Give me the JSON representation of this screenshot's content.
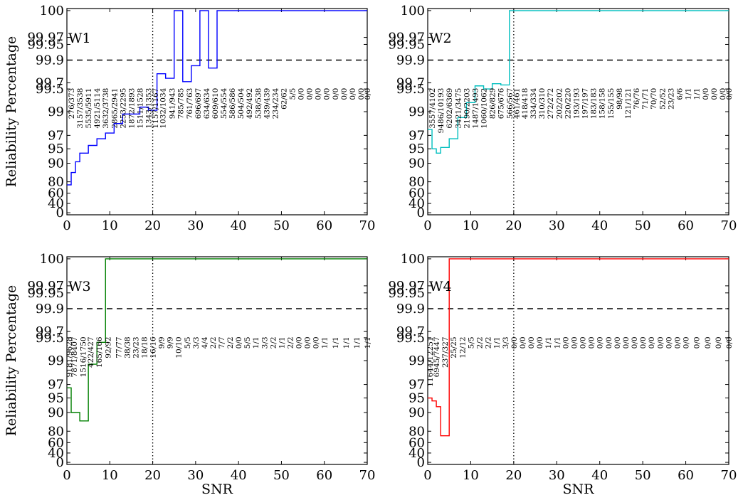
{
  "figure": {
    "ylabel": "Reliability Percentage",
    "xlabel": "SNR"
  },
  "chart_data": [
    {
      "type": "line",
      "title": "W1",
      "color": "#0000ff",
      "xlabel": "",
      "ylabel": "Reliability Percentage",
      "xlim": [
        0,
        70
      ],
      "xticks": [
        0,
        10,
        20,
        30,
        40,
        50,
        60,
        70
      ],
      "yticks": [
        "0",
        "40",
        "60",
        "80",
        "90",
        "95",
        "97",
        "99",
        "99.5",
        "99.7",
        "99.9",
        "99.95",
        "99.97",
        "100"
      ],
      "hline": 99.9,
      "vline": 20,
      "steps": [
        {
          "x": 0,
          "y": 74.5
        },
        {
          "x": 1,
          "y": 85
        },
        {
          "x": 2,
          "y": 90.5
        },
        {
          "x": 3,
          "y": 93.5
        },
        {
          "x": 5,
          "y": 95.5
        },
        {
          "x": 7,
          "y": 96.5
        },
        {
          "x": 9,
          "y": 97.2
        },
        {
          "x": 11,
          "y": 98.0
        },
        {
          "x": 13,
          "y": 98.8
        },
        {
          "x": 17,
          "y": 99.1
        },
        {
          "x": 19,
          "y": 99.03
        },
        {
          "x": 21,
          "y": 99.78
        },
        {
          "x": 23,
          "y": 99.74
        },
        {
          "x": 25,
          "y": 100
        },
        {
          "x": 27,
          "y": 99.71
        },
        {
          "x": 29,
          "y": 99.85
        },
        {
          "x": 31,
          "y": 100
        },
        {
          "x": 33,
          "y": 99.83
        },
        {
          "x": 35,
          "y": 100
        },
        {
          "x": 70,
          "y": 100
        }
      ],
      "counts": [
        {
          "x": 1,
          "text": "276/373"
        },
        {
          "x": 3,
          "text": "3157/3538"
        },
        {
          "x": 5,
          "text": "5535/5911"
        },
        {
          "x": 7,
          "text": "4921/5114"
        },
        {
          "x": 9,
          "text": "3632/3738"
        },
        {
          "x": 11,
          "text": "2865/2941"
        },
        {
          "x": 13,
          "text": "2253/2295"
        },
        {
          "x": 15,
          "text": "1872/1893"
        },
        {
          "x": 17,
          "text": "1511/1528"
        },
        {
          "x": 19,
          "text": "1343/1353"
        },
        {
          "x": 20.6,
          "text": "1157/1167"
        },
        {
          "x": 22.3,
          "text": "1032/1034"
        },
        {
          "x": 24.5,
          "text": "941/943"
        },
        {
          "x": 26.5,
          "text": "785/785"
        },
        {
          "x": 28.5,
          "text": "761/763"
        },
        {
          "x": 30.5,
          "text": "696/697"
        },
        {
          "x": 32.5,
          "text": "634/634"
        },
        {
          "x": 34.5,
          "text": "609/610"
        },
        {
          "x": 36.5,
          "text": "554/554"
        },
        {
          "x": 38.5,
          "text": "586/586"
        },
        {
          "x": 40.5,
          "text": "504/504"
        },
        {
          "x": 42.5,
          "text": "492/492"
        },
        {
          "x": 44.5,
          "text": "538/538"
        },
        {
          "x": 46.5,
          "text": "439/439"
        },
        {
          "x": 48.5,
          "text": "234/234"
        },
        {
          "x": 50.5,
          "text": "62/62"
        },
        {
          "x": 52.5,
          "text": "5/5"
        },
        {
          "x": 54.5,
          "text": "0/0"
        },
        {
          "x": 56.5,
          "text": "0/0"
        },
        {
          "x": 58.5,
          "text": "0/0"
        },
        {
          "x": 60.5,
          "text": "0/0"
        },
        {
          "x": 62.5,
          "text": "0/0"
        },
        {
          "x": 64.5,
          "text": "0/0"
        },
        {
          "x": 66.5,
          "text": "0/0"
        },
        {
          "x": 68.5,
          "text": "0/0"
        },
        {
          "x": 70,
          "text": "0/0"
        }
      ]
    },
    {
      "type": "line",
      "title": "W2",
      "color": "#00bfbf",
      "xlabel": "",
      "ylabel": "",
      "xlim": [
        0,
        70
      ],
      "xticks": [
        0,
        10,
        20,
        30,
        40,
        50,
        60,
        70
      ],
      "yticks": [
        "0",
        "40",
        "60",
        "80",
        "90",
        "95",
        "97",
        "99",
        "99.5",
        "99.7",
        "99.9",
        "99.95",
        "99.97",
        "100"
      ],
      "hline": 99.9,
      "vline": 20,
      "steps": [
        {
          "x": 0,
          "y": 97.5
        },
        {
          "x": 1,
          "y": 95
        },
        {
          "x": 2,
          "y": 93.5
        },
        {
          "x": 3,
          "y": 95.2
        },
        {
          "x": 5,
          "y": 96.5
        },
        {
          "x": 7,
          "y": 98.5
        },
        {
          "x": 9,
          "y": 99.2
        },
        {
          "x": 11,
          "y": 99.6
        },
        {
          "x": 13,
          "y": 99.5
        },
        {
          "x": 15,
          "y": 99.67
        },
        {
          "x": 17,
          "y": 99.63
        },
        {
          "x": 19,
          "y": 100
        },
        {
          "x": 70,
          "y": 100
        }
      ],
      "counts": [
        {
          "x": 1,
          "text": "3557/4102"
        },
        {
          "x": 3,
          "text": "9486/10193"
        },
        {
          "x": 5,
          "text": "6202/6369"
        },
        {
          "x": 7,
          "text": "3421/3475"
        },
        {
          "x": 9,
          "text": "2190/2203"
        },
        {
          "x": 11,
          "text": "1487/1493"
        },
        {
          "x": 13,
          "text": "1060/1062"
        },
        {
          "x": 15,
          "text": "826/829"
        },
        {
          "x": 17,
          "text": "675/676"
        },
        {
          "x": 19,
          "text": "566/567"
        },
        {
          "x": 20.6,
          "text": "461/461"
        },
        {
          "x": 22.5,
          "text": "418/418"
        },
        {
          "x": 24.5,
          "text": "334/334"
        },
        {
          "x": 26.5,
          "text": "310/310"
        },
        {
          "x": 28.5,
          "text": "272/272"
        },
        {
          "x": 30.5,
          "text": "202/202"
        },
        {
          "x": 32.5,
          "text": "220/220"
        },
        {
          "x": 34.5,
          "text": "193/193"
        },
        {
          "x": 36.5,
          "text": "197/197"
        },
        {
          "x": 38.5,
          "text": "183/183"
        },
        {
          "x": 40.5,
          "text": "158/158"
        },
        {
          "x": 42.5,
          "text": "155/155"
        },
        {
          "x": 44.5,
          "text": "98/98"
        },
        {
          "x": 46.5,
          "text": "121/121"
        },
        {
          "x": 48.5,
          "text": "76/76"
        },
        {
          "x": 50.5,
          "text": "71/71"
        },
        {
          "x": 52.5,
          "text": "70/70"
        },
        {
          "x": 54.5,
          "text": "52/52"
        },
        {
          "x": 56.5,
          "text": "23/23"
        },
        {
          "x": 58.5,
          "text": "6/6"
        },
        {
          "x": 60.5,
          "text": "1/1"
        },
        {
          "x": 62.5,
          "text": "1/1"
        },
        {
          "x": 64.5,
          "text": "0/0"
        },
        {
          "x": 66.5,
          "text": "0/0"
        },
        {
          "x": 68.5,
          "text": "0/0"
        },
        {
          "x": 70,
          "text": "0/0"
        }
      ]
    },
    {
      "type": "line",
      "title": "W3",
      "color": "#008000",
      "xlabel": "SNR",
      "ylabel": "Reliability Percentage",
      "xlim": [
        0,
        70
      ],
      "xticks": [
        0,
        10,
        20,
        30,
        40,
        50,
        60,
        70
      ],
      "yticks": [
        "0",
        "40",
        "60",
        "80",
        "90",
        "95",
        "97",
        "99",
        "99.5",
        "99.7",
        "99.9",
        "99.95",
        "99.97",
        "100"
      ],
      "hline": 99.9,
      "vline": 20,
      "steps": [
        {
          "x": 0,
          "y": 96.5
        },
        {
          "x": 1,
          "y": 90
        },
        {
          "x": 3,
          "y": 85.5
        },
        {
          "x": 5,
          "y": 98.7
        },
        {
          "x": 7,
          "y": 99.4
        },
        {
          "x": 9,
          "y": 100
        },
        {
          "x": 70,
          "y": 100
        }
      ],
      "counts": [
        {
          "x": 0.5,
          "text": "9181/9628"
        },
        {
          "x": 1.7,
          "text": "7871/8407"
        },
        {
          "x": 3.7,
          "text": "1516/1750"
        },
        {
          "x": 5.5,
          "text": "422/427"
        },
        {
          "x": 7.5,
          "text": "165/166"
        },
        {
          "x": 9.5,
          "text": "92/92"
        },
        {
          "x": 12,
          "text": "77/77"
        },
        {
          "x": 14,
          "text": "38/38"
        },
        {
          "x": 16,
          "text": "23/23"
        },
        {
          "x": 18,
          "text": "18/18"
        },
        {
          "x": 20,
          "text": "16/16"
        },
        {
          "x": 22,
          "text": "9/9"
        },
        {
          "x": 24,
          "text": "9/9"
        },
        {
          "x": 26,
          "text": "10/10"
        },
        {
          "x": 28,
          "text": "5/5"
        },
        {
          "x": 30,
          "text": "3/3"
        },
        {
          "x": 32,
          "text": "4/4"
        },
        {
          "x": 34,
          "text": "2/2"
        },
        {
          "x": 36,
          "text": "7/7"
        },
        {
          "x": 38,
          "text": "2/2"
        },
        {
          "x": 40,
          "text": "0/0"
        },
        {
          "x": 42,
          "text": "5/5"
        },
        {
          "x": 44,
          "text": "1/1"
        },
        {
          "x": 46,
          "text": "3/3"
        },
        {
          "x": 48,
          "text": "2/2"
        },
        {
          "x": 50,
          "text": "1/1"
        },
        {
          "x": 52,
          "text": "2/2"
        },
        {
          "x": 54,
          "text": "0/0"
        },
        {
          "x": 56,
          "text": "0/0"
        },
        {
          "x": 58,
          "text": "0/0"
        },
        {
          "x": 60,
          "text": "1/1"
        },
        {
          "x": 62.5,
          "text": "1/1"
        },
        {
          "x": 65,
          "text": "1/1"
        },
        {
          "x": 67.5,
          "text": "1/1"
        },
        {
          "x": 70,
          "text": "1/1"
        }
      ]
    },
    {
      "type": "line",
      "title": "W4",
      "color": "#ff0000",
      "xlabel": "SNR",
      "ylabel": "",
      "xlim": [
        0,
        70
      ],
      "xticks": [
        0,
        10,
        20,
        30,
        40,
        50,
        60,
        70
      ],
      "yticks": [
        "0",
        "40",
        "60",
        "80",
        "90",
        "95",
        "97",
        "99",
        "99.5",
        "99.7",
        "99.9",
        "99.95",
        "99.97",
        "100"
      ],
      "hline": 99.9,
      "vline": 20,
      "steps": [
        {
          "x": 0,
          "y": 95
        },
        {
          "x": 1,
          "y": 94
        },
        {
          "x": 2,
          "y": 92
        },
        {
          "x": 3,
          "y": 72
        },
        {
          "x": 5,
          "y": 100
        },
        {
          "x": 70,
          "y": 100
        }
      ],
      "counts": [
        {
          "x": 0.5,
          "text": "11644/12251"
        },
        {
          "x": 2,
          "text": "6945/7447"
        },
        {
          "x": 4,
          "text": "237/327"
        },
        {
          "x": 6,
          "text": "25/25"
        },
        {
          "x": 8,
          "text": "12/12"
        },
        {
          "x": 10,
          "text": "5/5"
        },
        {
          "x": 12,
          "text": "2/2"
        },
        {
          "x": 14,
          "text": "2/2"
        },
        {
          "x": 16,
          "text": "1/1"
        },
        {
          "x": 18,
          "text": "3/3"
        },
        {
          "x": 20,
          "text": "0/0"
        },
        {
          "x": 22,
          "text": "0/0"
        },
        {
          "x": 24,
          "text": "0/0"
        },
        {
          "x": 26,
          "text": "0/0"
        },
        {
          "x": 28,
          "text": "1/1"
        },
        {
          "x": 30,
          "text": "1/1"
        },
        {
          "x": 32,
          "text": "0/0"
        },
        {
          "x": 34,
          "text": "0/0"
        },
        {
          "x": 36,
          "text": "0/0"
        },
        {
          "x": 38,
          "text": "0/0"
        },
        {
          "x": 40,
          "text": "0/0"
        },
        {
          "x": 42,
          "text": "0/0"
        },
        {
          "x": 44,
          "text": "0/0"
        },
        {
          "x": 46,
          "text": "0/0"
        },
        {
          "x": 48,
          "text": "0/0"
        },
        {
          "x": 50,
          "text": "0/0"
        },
        {
          "x": 52,
          "text": "0/0"
        },
        {
          "x": 54,
          "text": "0/0"
        },
        {
          "x": 56,
          "text": "0/0"
        },
        {
          "x": 58,
          "text": "0/0"
        },
        {
          "x": 60,
          "text": "0/0"
        },
        {
          "x": 62.5,
          "text": "0/0"
        },
        {
          "x": 65,
          "text": "0/0"
        },
        {
          "x": 67.5,
          "text": "0/0"
        },
        {
          "x": 70,
          "text": "0/0"
        }
      ]
    }
  ]
}
